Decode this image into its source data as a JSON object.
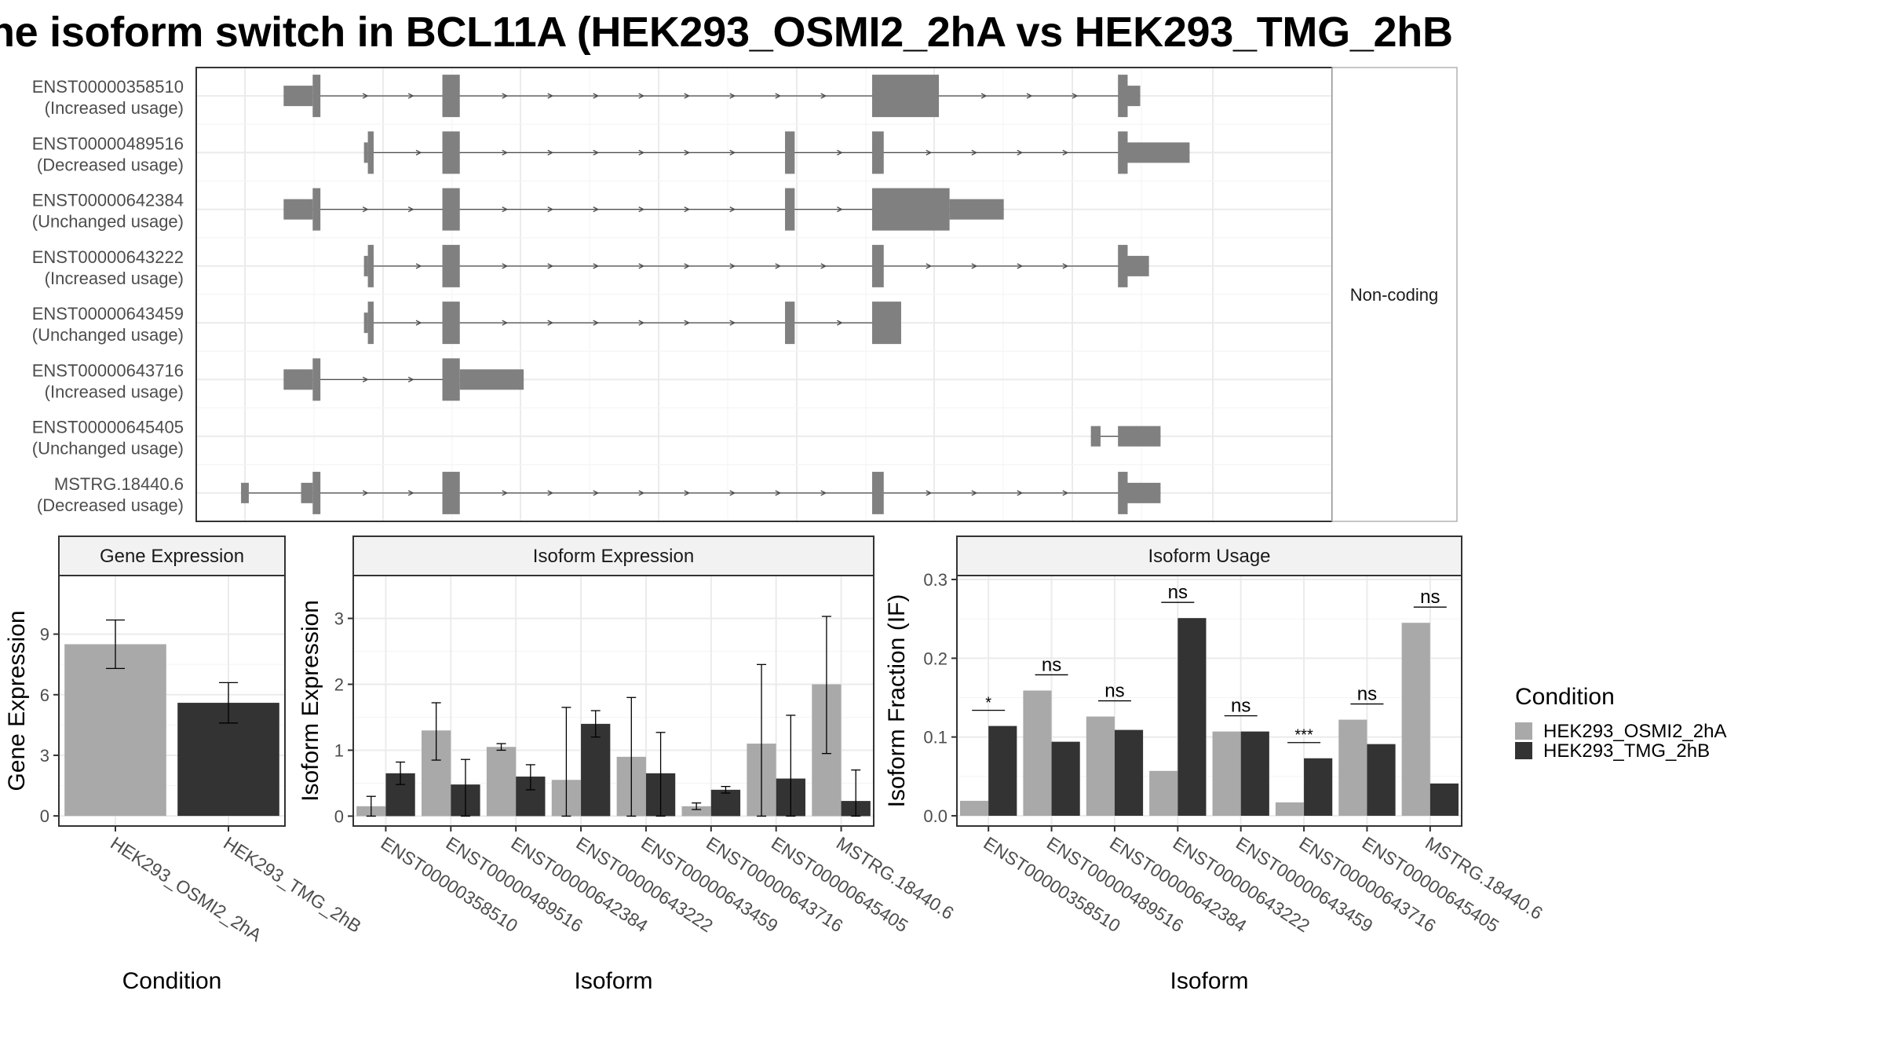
{
  "title": "he isoform switch in BCL11A (HEK293_OSMI2_2hA vs HEK293_TMG_2hB",
  "colors": {
    "feature": "#808080",
    "cond_a": "#a9a9a9",
    "cond_b": "#333333",
    "grid_major": "#ebebeb",
    "grid_minor": "#f5f5f5",
    "panel_border": "#333333",
    "strip_fill": "#f2f2f2"
  },
  "chart_data": [
    {
      "type": "gene-structure",
      "facet_label": "Non-coding",
      "x_scale": [
        0,
        1
      ],
      "transcripts": [
        {
          "id": "ENST00000358510",
          "usage": "(Increased usage)",
          "exons": [
            [
              0.04,
              0.07,
              "s"
            ],
            [
              0.07,
              0.078,
              "t"
            ],
            [
              0.204,
              0.222,
              "t"
            ],
            [
              0.648,
              0.717,
              "t"
            ],
            [
              0.902,
              0.912,
              "t"
            ],
            [
              0.912,
              0.925,
              "s"
            ]
          ]
        },
        {
          "id": "ENST00000489516",
          "usage": "(Decreased usage)",
          "exons": [
            [
              0.123,
              0.127,
              "s"
            ],
            [
              0.127,
              0.133,
              "t"
            ],
            [
              0.204,
              0.222,
              "t"
            ],
            [
              0.558,
              0.568,
              "t"
            ],
            [
              0.648,
              0.66,
              "t"
            ],
            [
              0.902,
              0.912,
              "t"
            ],
            [
              0.912,
              0.976,
              "s"
            ]
          ]
        },
        {
          "id": "ENST00000642384",
          "usage": "(Unchanged usage)",
          "exons": [
            [
              0.04,
              0.07,
              "s"
            ],
            [
              0.07,
              0.078,
              "t"
            ],
            [
              0.204,
              0.222,
              "t"
            ],
            [
              0.558,
              0.568,
              "t"
            ],
            [
              0.648,
              0.728,
              "t"
            ],
            [
              0.728,
              0.784,
              "s"
            ]
          ]
        },
        {
          "id": "ENST00000643222",
          "usage": "(Increased usage)",
          "exons": [
            [
              0.123,
              0.127,
              "s"
            ],
            [
              0.127,
              0.133,
              "t"
            ],
            [
              0.204,
              0.222,
              "t"
            ],
            [
              0.648,
              0.66,
              "t"
            ],
            [
              0.902,
              0.912,
              "t"
            ],
            [
              0.912,
              0.934,
              "s"
            ]
          ]
        },
        {
          "id": "ENST00000643459",
          "usage": "(Unchanged usage)",
          "exons": [
            [
              0.123,
              0.127,
              "s"
            ],
            [
              0.127,
              0.133,
              "t"
            ],
            [
              0.204,
              0.222,
              "t"
            ],
            [
              0.558,
              0.568,
              "t"
            ],
            [
              0.648,
              0.678,
              "t"
            ]
          ]
        },
        {
          "id": "ENST00000643716",
          "usage": "(Increased usage)",
          "exons": [
            [
              0.04,
              0.07,
              "s"
            ],
            [
              0.07,
              0.078,
              "t"
            ],
            [
              0.204,
              0.222,
              "t"
            ],
            [
              0.222,
              0.288,
              "s"
            ]
          ]
        },
        {
          "id": "ENST00000645405",
          "usage": "(Unchanged usage)",
          "exons": [
            [
              0.874,
              0.884,
              "s"
            ],
            [
              0.902,
              0.946,
              "s"
            ]
          ]
        },
        {
          "id": "MSTRG.18440.6",
          "usage": "(Decreased usage)",
          "exons": [
            [
              -0.004,
              0.004,
              "s"
            ],
            [
              0.058,
              0.07,
              "s"
            ],
            [
              0.07,
              0.078,
              "t"
            ],
            [
              0.204,
              0.222,
              "t"
            ],
            [
              0.648,
              0.66,
              "t"
            ],
            [
              0.902,
              0.912,
              "t"
            ],
            [
              0.912,
              0.946,
              "s"
            ]
          ]
        }
      ]
    },
    {
      "type": "bar",
      "strip": "Gene Expression",
      "xlabel": "Condition",
      "ylabel": "Gene Expression",
      "categories": [
        "HEK293_OSMI2_2hA",
        "HEK293_TMG_2hB"
      ],
      "ylim": [
        -0.5,
        11.9
      ],
      "yticks": [
        0,
        3,
        6,
        9
      ],
      "values": [
        8.5,
        5.6
      ],
      "err_low": [
        7.3,
        4.6
      ],
      "err_high": [
        9.7,
        6.6
      ]
    },
    {
      "type": "bar",
      "strip": "Isoform Expression",
      "xlabel": "Isoform",
      "ylabel": "Isoform Expression",
      "categories": [
        "ENST00000358510",
        "ENST00000489516",
        "ENST00000642384",
        "ENST00000643222",
        "ENST00000643459",
        "ENST00000643716",
        "ENST00000645405",
        "MSTRG.18440.6"
      ],
      "ylim": [
        -0.15,
        3.65
      ],
      "yticks": [
        0,
        1,
        2,
        3
      ],
      "series": [
        {
          "name": "HEK293_OSMI2_2hA",
          "values": [
            0.15,
            1.3,
            1.05,
            0.55,
            0.9,
            0.15,
            1.1,
            2.0
          ],
          "err_low": [
            0.0,
            0.85,
            1.0,
            0.0,
            0.0,
            0.1,
            0.0,
            0.95
          ],
          "err_high": [
            0.3,
            1.72,
            1.1,
            1.65,
            1.8,
            0.2,
            2.3,
            3.03
          ]
        },
        {
          "name": "HEK293_TMG_2hB",
          "values": [
            0.65,
            0.48,
            0.6,
            1.4,
            0.65,
            0.4,
            0.57,
            0.23
          ],
          "err_low": [
            0.48,
            0.0,
            0.4,
            1.2,
            0.0,
            0.35,
            0.0,
            0.0
          ],
          "err_high": [
            0.82,
            0.86,
            0.78,
            1.6,
            1.27,
            0.45,
            1.53,
            0.7
          ]
        }
      ]
    },
    {
      "type": "bar",
      "strip": "Isoform Usage",
      "xlabel": "Isoform",
      "ylabel": "Isoform Fraction (IF)",
      "categories": [
        "ENST00000358510",
        "ENST00000489516",
        "ENST00000642384",
        "ENST00000643222",
        "ENST00000643459",
        "ENST00000643716",
        "ENST00000645405",
        "MSTRG.18440.6"
      ],
      "ylim": [
        -0.013,
        0.305
      ],
      "yticks": [
        0.0,
        0.1,
        0.2,
        0.3
      ],
      "ytick_labels": [
        "0.0",
        "0.1",
        "0.2",
        "0.3"
      ],
      "series": [
        {
          "name": "HEK293_OSMI2_2hA",
          "values": [
            0.019,
            0.159,
            0.126,
            0.057,
            0.107,
            0.017,
            0.122,
            0.245
          ]
        },
        {
          "name": "HEK293_TMG_2hB",
          "values": [
            0.114,
            0.094,
            0.109,
            0.251,
            0.107,
            0.073,
            0.091,
            0.041
          ]
        }
      ],
      "significance": [
        "*",
        "ns",
        "ns",
        "ns",
        "ns",
        "***",
        "ns",
        "ns"
      ]
    }
  ],
  "legend": {
    "title": "Condition",
    "items": [
      "HEK293_OSMI2_2hA",
      "HEK293_TMG_2hB"
    ]
  }
}
